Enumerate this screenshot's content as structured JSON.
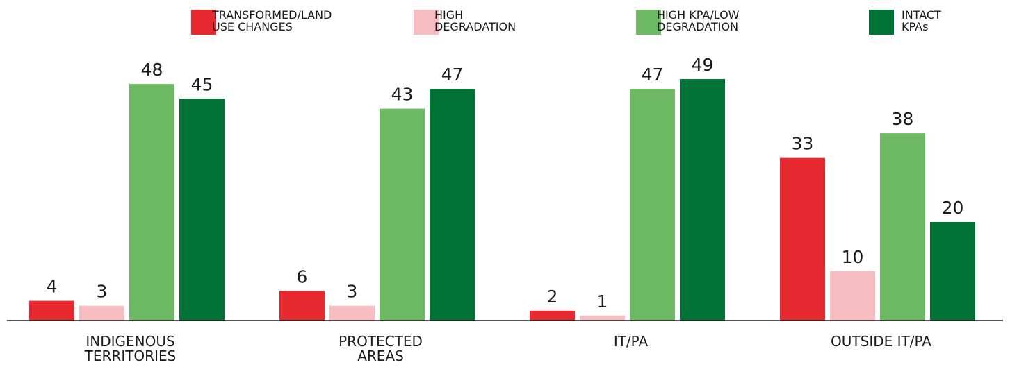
{
  "chart_data": {
    "type": "bar",
    "categories": [
      "INDIGENOUS\nTERRITORIES",
      "PROTECTED\nAREAS",
      "IT/PA",
      "OUTSIDE IT/PA"
    ],
    "series": [
      {
        "name": "TRANSFORMED/LAND\nUSE CHANGES",
        "color": "#e6292e",
        "values": [
          4,
          6,
          2,
          33
        ]
      },
      {
        "name": "HIGH\nDEGRADATION",
        "color": "#f7bcbf",
        "values": [
          3,
          3,
          1,
          10
        ]
      },
      {
        "name": "HIGH KPA/LOW\nDEGRADATION",
        "color": "#6db862",
        "values": [
          48,
          43,
          47,
          38
        ]
      },
      {
        "name": "INTACT\nKPAs",
        "color": "#007236",
        "values": [
          45,
          47,
          49,
          20
        ]
      }
    ],
    "legend": "top"
  }
}
